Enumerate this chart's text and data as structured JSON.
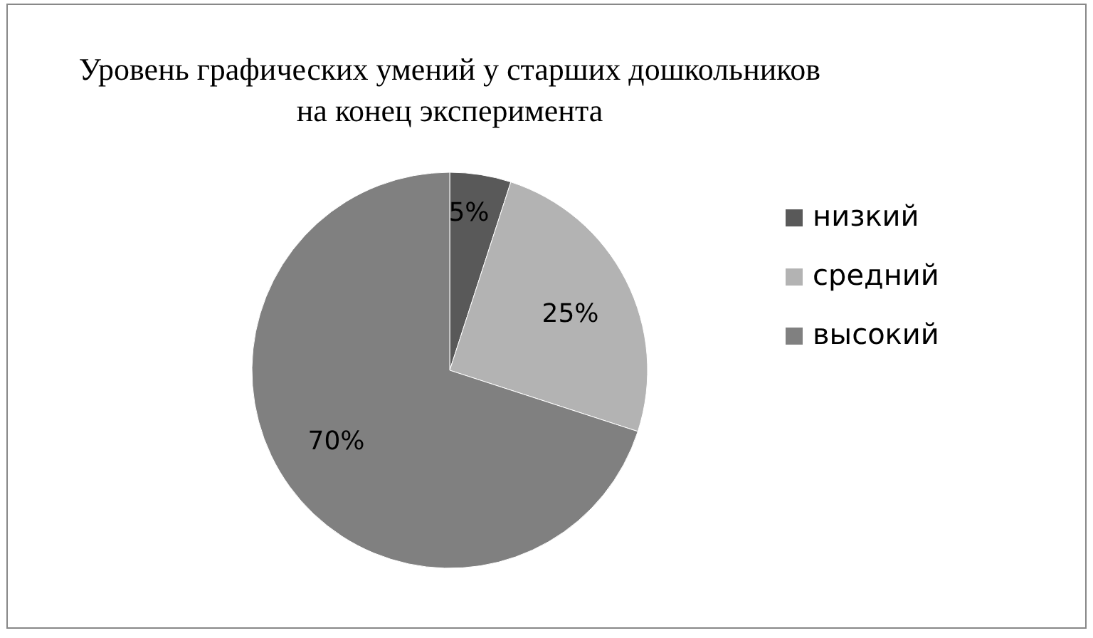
{
  "chart_data": {
    "type": "pie",
    "title": "Уровень графических умений у старших дошкольников\nна конец эксперимента",
    "categories": [
      "низкий",
      "средний",
      "высокий"
    ],
    "values": [
      5,
      25,
      70
    ],
    "colors": [
      "#595959",
      "#b3b3b3",
      "#808080"
    ],
    "value_labels": [
      "5%",
      "25%",
      "70%"
    ],
    "legend": "right"
  }
}
